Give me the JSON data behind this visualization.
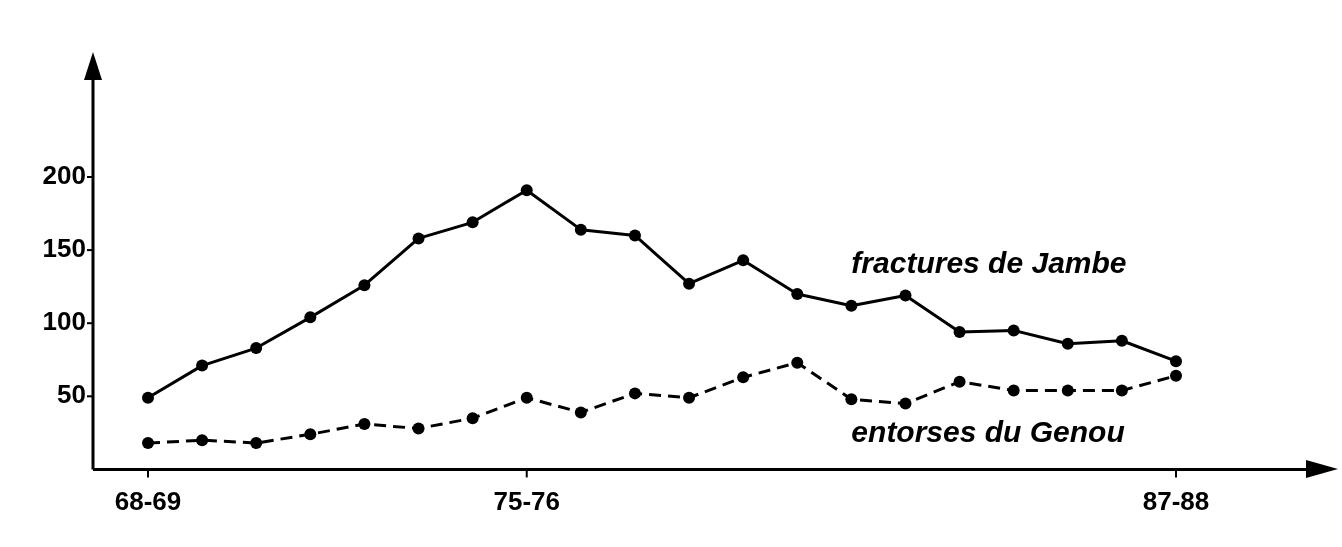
{
  "chart_data": {
    "type": "line",
    "categories": [
      "68-69",
      null,
      null,
      null,
      null,
      null,
      null,
      "75-76",
      null,
      null,
      null,
      null,
      null,
      null,
      null,
      null,
      null,
      null,
      null,
      "87-88"
    ],
    "series": [
      {
        "name": "fractures de Jambe",
        "color": "#000000",
        "line_style": "solid",
        "values": [
          49,
          71,
          83,
          104,
          126,
          158,
          169,
          191,
          164,
          160,
          127,
          143,
          120,
          112,
          119,
          94,
          95,
          86,
          88,
          74
        ]
      },
      {
        "name": "entorses du Genou",
        "color": "#000000",
        "line_style": "dashed",
        "values": [
          18,
          20,
          18,
          24,
          31,
          28,
          35,
          49,
          39,
          52,
          49,
          63,
          73,
          48,
          45,
          60,
          54,
          54,
          54,
          64
        ]
      }
    ],
    "ylim": [
      0,
      268
    ],
    "yticks": [
      50,
      100,
      150,
      200
    ],
    "grid": false,
    "legend": false,
    "marker": "circle"
  }
}
